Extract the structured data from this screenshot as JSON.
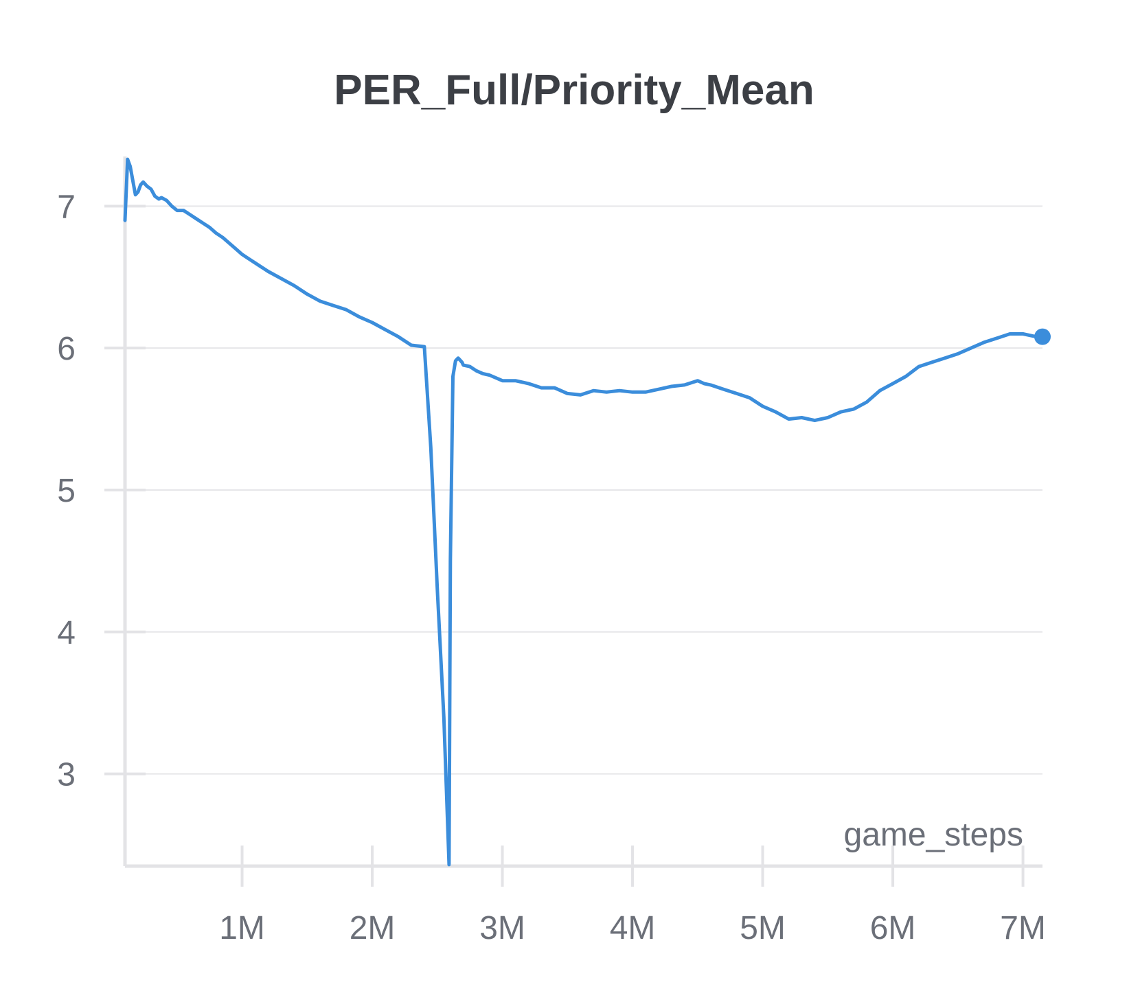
{
  "chart_data": {
    "type": "line",
    "title": "PER_Full/Priority_Mean",
    "xlabel": "game_steps",
    "ylabel": "",
    "xlim": [
      0.1,
      7.15
    ],
    "ylim": [
      2.35,
      7.35
    ],
    "x_ticks": [
      {
        "value": 1,
        "label": "1M"
      },
      {
        "value": 2,
        "label": "2M"
      },
      {
        "value": 3,
        "label": "3M"
      },
      {
        "value": 4,
        "label": "4M"
      },
      {
        "value": 5,
        "label": "5M"
      },
      {
        "value": 6,
        "label": "6M"
      },
      {
        "value": 7,
        "label": "7M"
      }
    ],
    "y_ticks": [
      {
        "value": 3,
        "label": "3"
      },
      {
        "value": 4,
        "label": "4"
      },
      {
        "value": 5,
        "label": "5"
      },
      {
        "value": 6,
        "label": "6"
      },
      {
        "value": 7,
        "label": "7"
      }
    ],
    "grid": true,
    "legend": "none",
    "series": [
      {
        "color": "#3b8ddb",
        "x": [
          0.1,
          0.12,
          0.14,
          0.16,
          0.18,
          0.2,
          0.22,
          0.24,
          0.27,
          0.3,
          0.33,
          0.36,
          0.38,
          0.42,
          0.46,
          0.5,
          0.55,
          0.6,
          0.65,
          0.7,
          0.75,
          0.8,
          0.85,
          0.9,
          0.95,
          1.0,
          1.05,
          1.1,
          1.2,
          1.3,
          1.4,
          1.5,
          1.6,
          1.7,
          1.8,
          1.9,
          2.0,
          2.1,
          2.2,
          2.3,
          2.4,
          2.45,
          2.5,
          2.55,
          2.59,
          2.6,
          2.62,
          2.64,
          2.66,
          2.67,
          2.68,
          2.69,
          2.7,
          2.75,
          2.8,
          2.85,
          2.9,
          3.0,
          3.1,
          3.2,
          3.3,
          3.4,
          3.5,
          3.6,
          3.7,
          3.8,
          3.9,
          4.0,
          4.1,
          4.2,
          4.3,
          4.4,
          4.5,
          4.55,
          4.6,
          4.7,
          4.8,
          4.9,
          5.0,
          5.1,
          5.2,
          5.3,
          5.4,
          5.5,
          5.6,
          5.7,
          5.8,
          5.9,
          6.0,
          6.1,
          6.2,
          6.3,
          6.4,
          6.5,
          6.6,
          6.7,
          6.8,
          6.9,
          7.0,
          7.1,
          7.15
        ],
        "y": [
          6.9,
          7.33,
          7.28,
          7.18,
          7.08,
          7.1,
          7.15,
          7.17,
          7.14,
          7.12,
          7.07,
          7.05,
          7.06,
          7.04,
          7.0,
          6.97,
          6.97,
          6.94,
          6.91,
          6.88,
          6.85,
          6.81,
          6.78,
          6.74,
          6.7,
          6.66,
          6.63,
          6.6,
          6.54,
          6.49,
          6.44,
          6.38,
          6.33,
          6.3,
          6.27,
          6.22,
          6.18,
          6.13,
          6.08,
          6.02,
          6.01,
          5.3,
          4.3,
          3.4,
          2.36,
          4.5,
          5.8,
          5.91,
          5.93,
          5.92,
          5.91,
          5.9,
          5.88,
          5.87,
          5.84,
          5.82,
          5.81,
          5.77,
          5.77,
          5.75,
          5.72,
          5.72,
          5.68,
          5.67,
          5.7,
          5.69,
          5.7,
          5.69,
          5.69,
          5.71,
          5.73,
          5.74,
          5.77,
          5.75,
          5.74,
          5.71,
          5.68,
          5.65,
          5.59,
          5.55,
          5.5,
          5.51,
          5.49,
          5.51,
          5.55,
          5.57,
          5.62,
          5.7,
          5.75,
          5.8,
          5.87,
          5.9,
          5.93,
          5.96,
          6.0,
          6.04,
          6.07,
          6.1,
          6.1,
          6.08,
          6.08
        ]
      }
    ]
  }
}
